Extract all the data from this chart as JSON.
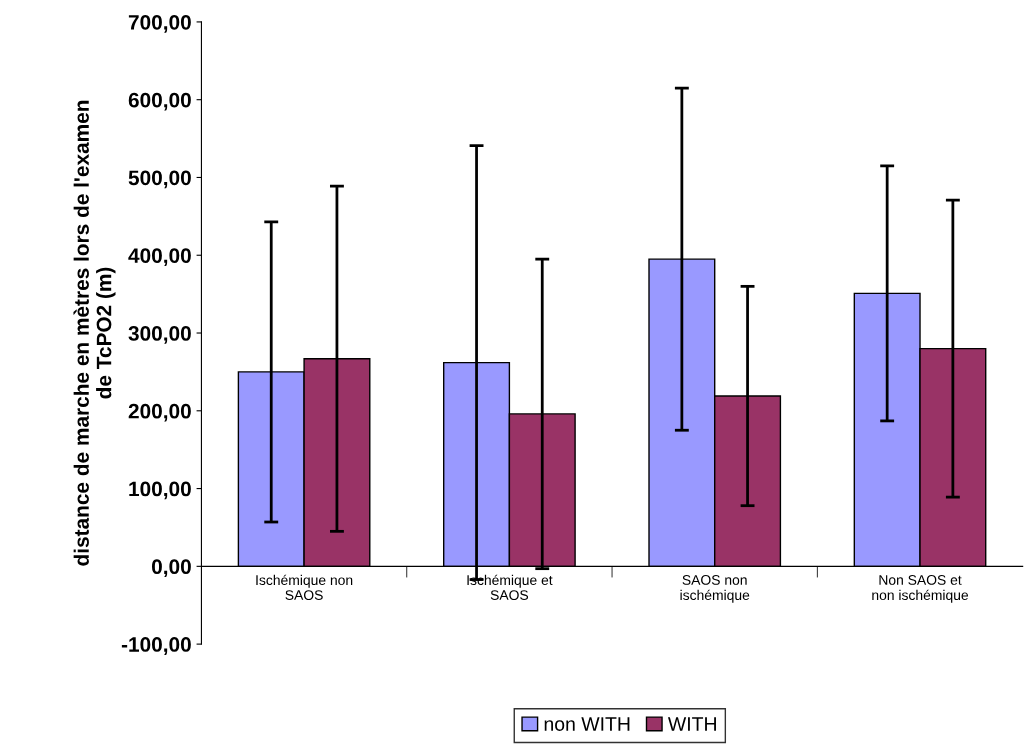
{
  "chart_data": {
    "type": "bar",
    "ylabel": "distance de marche en mètres lors de l'examen\nde TcPO2 (m)",
    "categories": [
      "Ischémique non\nSAOS",
      "Ischémique et\nSAOS",
      "SAOS non\nischémique",
      "Non SAOS et\nnon ischémique"
    ],
    "series": [
      {
        "name": "non WITH",
        "color": "#9999ff",
        "values": [
          250,
          262,
          395,
          351
        ],
        "errors": [
          193,
          279,
          220,
          164
        ]
      },
      {
        "name": "WITH",
        "color": "#993366",
        "values": [
          267,
          196,
          219,
          280
        ],
        "errors": [
          222,
          199,
          141,
          191
        ]
      }
    ],
    "ylim": [
      -100,
      700
    ],
    "yticks": [
      {
        "value": -100,
        "label": "-100,00"
      },
      {
        "value": 0,
        "label": "0,00"
      },
      {
        "value": 100,
        "label": "100,00"
      },
      {
        "value": 200,
        "label": "200,00"
      },
      {
        "value": 300,
        "label": "300,00"
      },
      {
        "value": 400,
        "label": "400,00"
      },
      {
        "value": 500,
        "label": "500,00"
      },
      {
        "value": 600,
        "label": "600,00"
      },
      {
        "value": 700,
        "label": "700,00"
      }
    ],
    "grid": false,
    "legend": "bottom"
  }
}
